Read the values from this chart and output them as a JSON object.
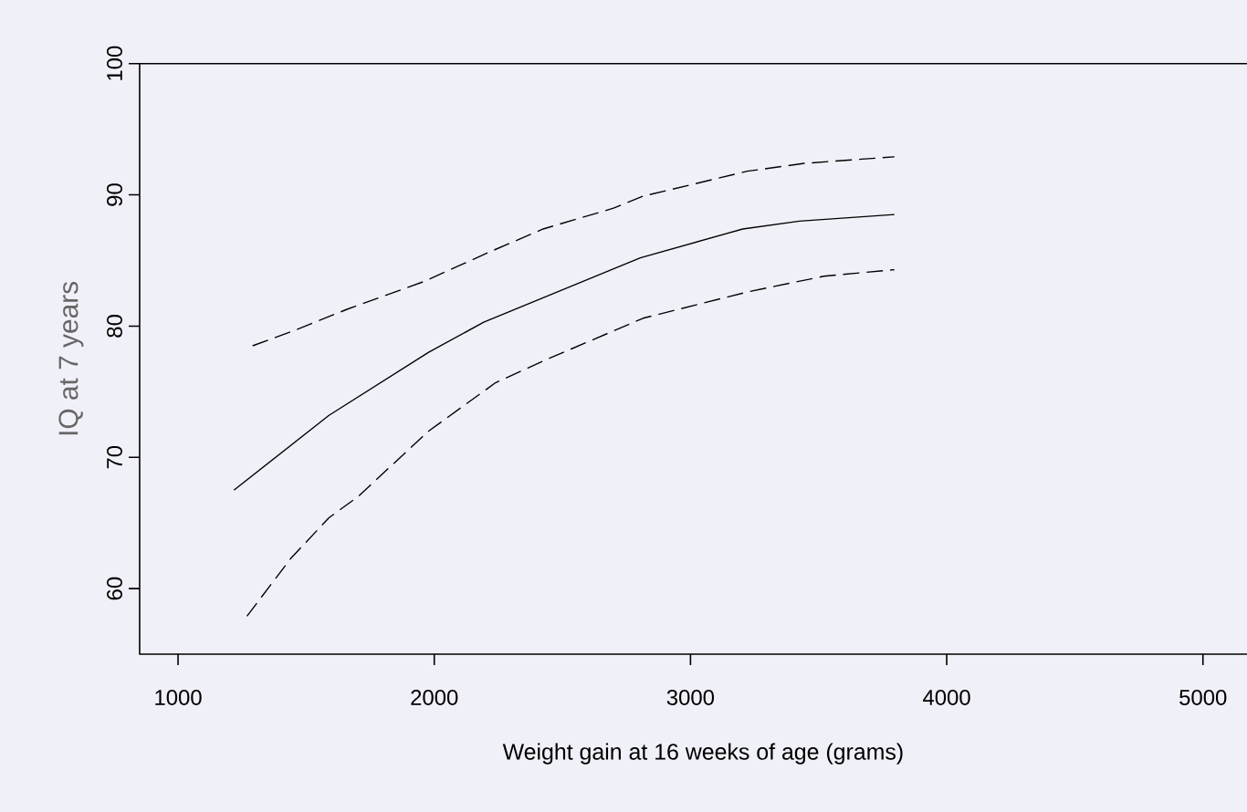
{
  "chart_data": {
    "type": "line",
    "xlabel": "Weight gain at 16 weeks of age (grams)",
    "ylabel": "IQ at 7 years",
    "xlim": [
      850,
      5250
    ],
    "xticks": [
      1000,
      2000,
      3000,
      4000,
      5000
    ],
    "ylim": [
      55,
      100
    ],
    "yticks": [
      60,
      70,
      80,
      90,
      100
    ],
    "grid": false,
    "series": [
      {
        "color": "#000000",
        "line_style": "dashed",
        "x": [
          1291,
          1458,
          1662,
          1960,
          2222,
          2425,
          2702,
          2815,
          3222,
          3444,
          3796
        ],
        "values": [
          78.5,
          79.7,
          81.3,
          83.4,
          85.7,
          87.4,
          89.0,
          89.9,
          91.8,
          92.4,
          92.9
        ]
      },
      {
        "color": "#000000",
        "line_style": "solid",
        "x": [
          1218,
          1589,
          1978,
          2193,
          2804,
          3204,
          3425,
          3796
        ],
        "values": [
          67.5,
          73.2,
          78.0,
          80.3,
          85.2,
          87.4,
          88.0,
          88.5
        ]
      },
      {
        "color": "#000000",
        "line_style": "dashed",
        "x": [
          1269,
          1440,
          1589,
          1702,
          1978,
          2240,
          2444,
          2815,
          3222,
          3520,
          3796
        ],
        "values": [
          57.9,
          62.3,
          65.4,
          67.0,
          72.0,
          75.7,
          77.5,
          80.6,
          82.6,
          83.8,
          84.3
        ]
      }
    ]
  }
}
